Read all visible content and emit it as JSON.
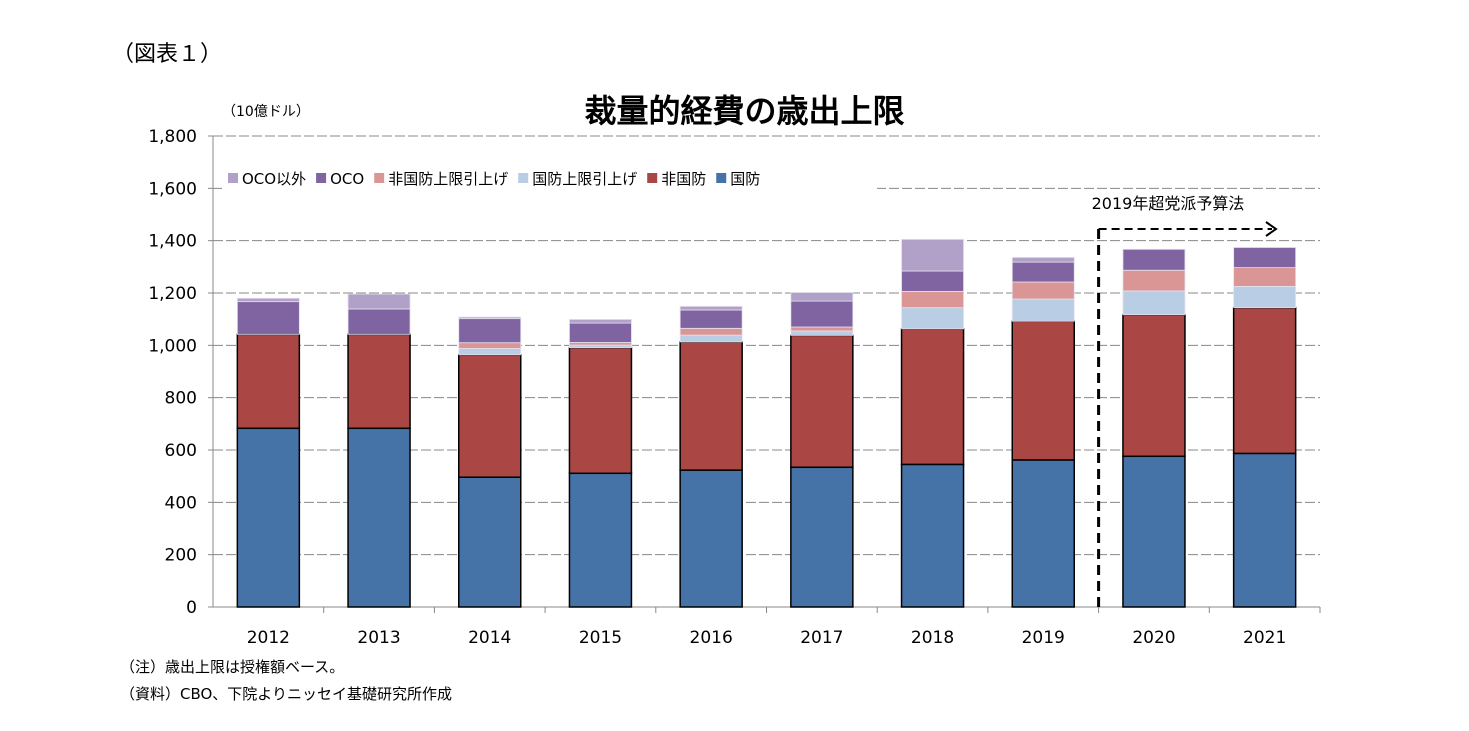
{
  "figure_label": "（図表１）",
  "chart_data": {
    "type": "bar",
    "stacked": true,
    "title": "裁量的経費の歳出上限",
    "ylabel": "（10億ドル）",
    "xlabel": "",
    "ylim": [
      0,
      1800
    ],
    "yticks": [
      0,
      200,
      400,
      600,
      800,
      1000,
      1200,
      1400,
      1600,
      1800
    ],
    "ytick_labels": [
      "0",
      "200",
      "400",
      "600",
      "800",
      "1,000",
      "1,200",
      "1,400",
      "1,600",
      "1,800"
    ],
    "grid": true,
    "legend_position": "top",
    "categories": [
      "2012",
      "2013",
      "2014",
      "2015",
      "2016",
      "2017",
      "2018",
      "2019",
      "2020",
      "2021"
    ],
    "series": [
      {
        "name": "国防",
        "color": "#4572A7",
        "values": [
          683,
          683,
          496,
          511,
          523,
          534,
          545,
          562,
          576,
          587
        ]
      },
      {
        "name": "非国防",
        "color": "#AA4643",
        "values": [
          359,
          359,
          468,
          480,
          490,
          504,
          518,
          530,
          541,
          557
        ]
      },
      {
        "name": "国防上限引上げ",
        "color": "#B9CDE5",
        "values": [
          0,
          0,
          24,
          10,
          26,
          17,
          81,
          85,
          91,
          81
        ]
      },
      {
        "name": "非国防上限引上げ",
        "color": "#D99694",
        "values": [
          0,
          0,
          22,
          10,
          26,
          15,
          62,
          65,
          79,
          72
        ]
      },
      {
        "name": "OCO",
        "color": "#8064A2",
        "values": [
          125,
          97,
          92,
          74,
          70,
          99,
          78,
          76,
          80,
          77
        ]
      },
      {
        "name": "OCO以外",
        "color": "#B1A0C7",
        "values": [
          13,
          57,
          6,
          14,
          14,
          33,
          121,
          18,
          0,
          0
        ]
      }
    ],
    "legend_order": [
      "OCO以外",
      "OCO",
      "非国防上限引上げ",
      "国防上限引上げ",
      "非国防",
      "国防"
    ],
    "annotation": {
      "text": "2019年超党派予算法",
      "from_category": "2020",
      "style": "dashed arrow"
    }
  },
  "notes": [
    "（注）歳出上限は授権額ベース。",
    "（資料）CBO、下院よりニッセイ基礎研究所作成"
  ]
}
